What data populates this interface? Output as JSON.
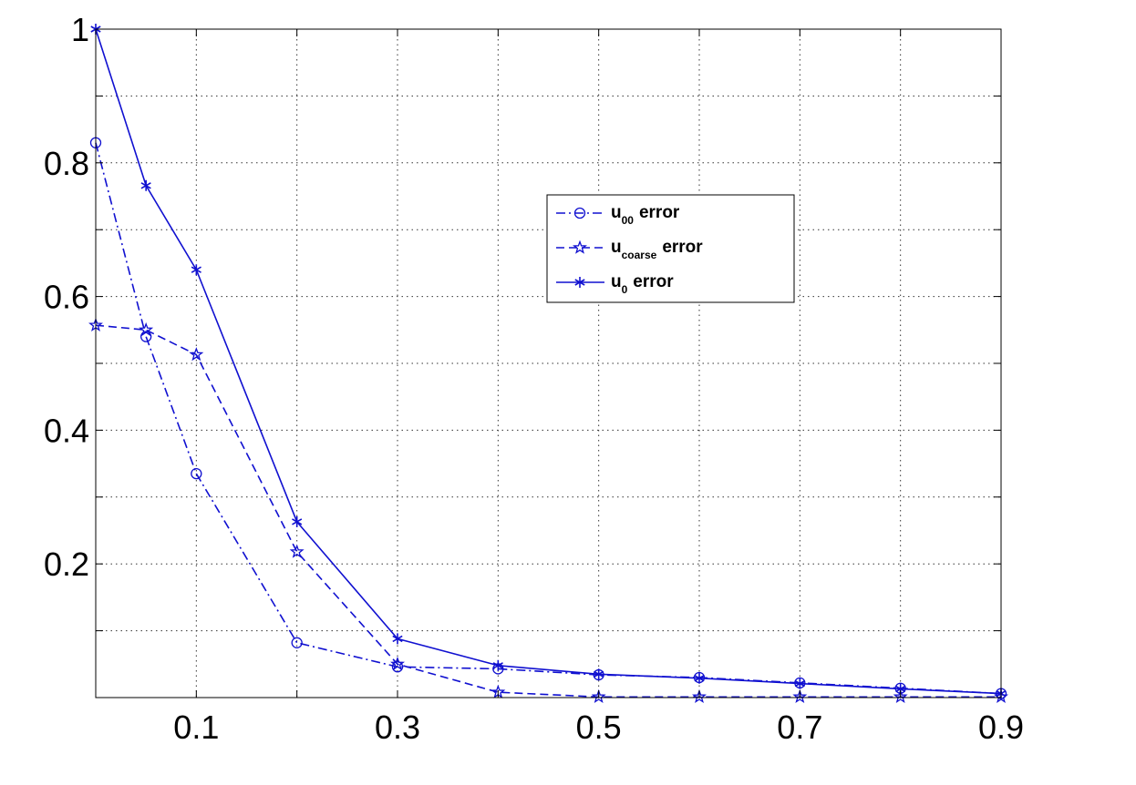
{
  "chart_data": {
    "type": "line",
    "title": "",
    "xlabel": "",
    "ylabel": "",
    "xlim": [
      0,
      0.9
    ],
    "ylim": [
      0,
      1
    ],
    "grid": true,
    "grid_style": "dotted",
    "x": [
      0,
      0.05,
      0.1,
      0.2,
      0.3,
      0.4,
      0.5,
      0.6,
      0.7,
      0.8,
      0.9
    ],
    "x_ticks": [
      0.1,
      0.3,
      0.5,
      0.7,
      0.9
    ],
    "x_tick_labels": [
      "0.1",
      "0.3",
      "0.5",
      "0.7",
      "0.9"
    ],
    "x_grid": [
      0,
      0.1,
      0.2,
      0.3,
      0.4,
      0.5,
      0.6,
      0.7,
      0.8,
      0.9
    ],
    "y_ticks": [
      0.2,
      0.4,
      0.6,
      0.8,
      1
    ],
    "y_tick_labels": [
      "0.2",
      "0.4",
      "0.6",
      "0.8",
      "1"
    ],
    "y_grid": [
      0.1,
      0.2,
      0.3,
      0.4,
      0.5,
      0.6,
      0.7,
      0.8,
      0.9,
      1.0
    ],
    "legend_position": "upper-center-right",
    "series": [
      {
        "key": "u00",
        "legend_main": "u",
        "legend_sub": "00",
        "legend_suffix": "error",
        "marker": "circle",
        "linestyle": "dash-dot",
        "color": "#1010d0",
        "values": [
          0.83,
          0.54,
          0.335,
          0.082,
          0.046,
          0.043,
          0.034,
          0.03,
          0.022,
          0.014,
          0.006
        ]
      },
      {
        "key": "ucoarse",
        "legend_main": "u",
        "legend_sub": "coarse",
        "legend_suffix": "error",
        "marker": "star",
        "linestyle": "dashed",
        "color": "#1010d0",
        "values": [
          0.557,
          0.55,
          0.513,
          0.218,
          0.05,
          0.008,
          0.001,
          0.001,
          0.001,
          0.001,
          0.001
        ]
      },
      {
        "key": "u0",
        "legend_main": "u",
        "legend_sub": "0",
        "legend_suffix": "error",
        "marker": "asterisk",
        "linestyle": "solid",
        "color": "#1010d0",
        "values": [
          1.0,
          0.766,
          0.64,
          0.263,
          0.088,
          0.048,
          0.035,
          0.029,
          0.021,
          0.013,
          0.006
        ]
      }
    ]
  }
}
